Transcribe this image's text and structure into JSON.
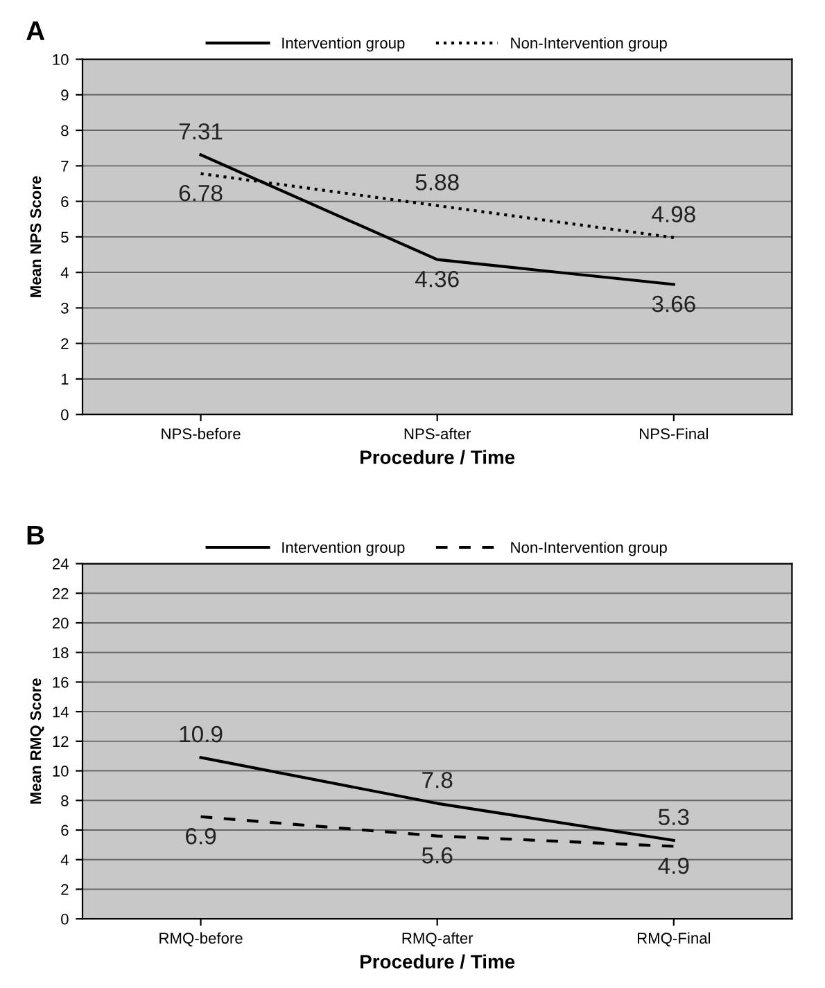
{
  "chart_data": [
    {
      "type": "line",
      "title": "A",
      "xlabel": "Procedure / Time",
      "ylabel": "Mean NPS Score",
      "categories": [
        "NPS-before",
        "NPS-after",
        "NPS-Final"
      ],
      "ylim": [
        0,
        10
      ],
      "yticks": [
        0,
        1,
        2,
        3,
        4,
        5,
        6,
        7,
        8,
        9,
        10
      ],
      "grid": "y",
      "legend": "top",
      "data_labels": true,
      "series": [
        {
          "name": "Intervention group",
          "color": "#000000",
          "line_style": "solid",
          "values": [
            7.31,
            4.36,
            3.66
          ]
        },
        {
          "name": "Non-Intervention group",
          "color": "#000000",
          "line_style": "dotted",
          "values": [
            6.78,
            5.88,
            4.98
          ]
        }
      ]
    },
    {
      "type": "line",
      "title": "B",
      "xlabel": "Procedure / Time",
      "ylabel": "Mean RMQ Score",
      "categories": [
        "RMQ-before",
        "RMQ-after",
        "RMQ-Final"
      ],
      "ylim": [
        0,
        24
      ],
      "yticks": [
        0,
        2,
        4,
        6,
        8,
        10,
        12,
        14,
        16,
        18,
        20,
        22,
        24
      ],
      "grid": "y",
      "legend": "top",
      "data_labels": true,
      "series": [
        {
          "name": "Intervention group",
          "color": "#000000",
          "line_style": "solid",
          "values": [
            10.9,
            7.8,
            5.3
          ]
        },
        {
          "name": "Non-Intervention group",
          "color": "#000000",
          "line_style": "dashed",
          "values": [
            6.9,
            5.6,
            4.9
          ]
        }
      ]
    }
  ]
}
